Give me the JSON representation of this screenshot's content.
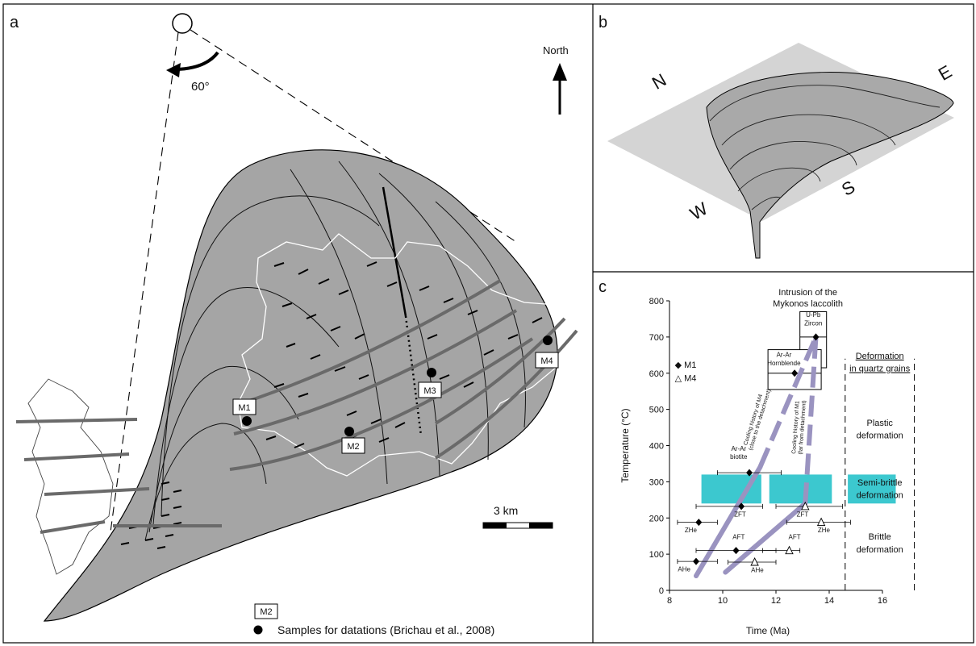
{
  "panel_a": {
    "label": "a",
    "north_label": "North",
    "rotation_label": "60°",
    "scale_label": "3 km",
    "samples": [
      {
        "name": "M1"
      },
      {
        "name": "M2"
      },
      {
        "name": "M3"
      },
      {
        "name": "M4"
      }
    ],
    "legend": {
      "box_label": "M2",
      "samples_label": "Samples for datations (Brichau et al., 2008)"
    }
  },
  "panel_b": {
    "label": "b",
    "compass": {
      "n": "N",
      "e": "E",
      "s": "S",
      "w": "W"
    }
  },
  "chart_data": {
    "type": "scatter",
    "panel_label": "c",
    "xlabel": "Time (Ma)",
    "ylabel": "Temperature (°C)",
    "xlim": [
      8,
      16
    ],
    "ylim": [
      0,
      800
    ],
    "xticks": [
      8,
      10,
      12,
      14,
      16
    ],
    "yticks": [
      0,
      100,
      200,
      300,
      400,
      500,
      600,
      700,
      800
    ],
    "legend": [
      {
        "symbol": "◆",
        "name": "M1"
      },
      {
        "symbol": "△",
        "name": "M4"
      }
    ],
    "series": [
      {
        "name": "M1",
        "marker": "diamond",
        "points": [
          {
            "label": "AHe",
            "x": 9.0,
            "y": 80,
            "xerr": [
              8.3,
              9.8
            ]
          },
          {
            "label": "AFT",
            "x": 10.5,
            "y": 110,
            "xerr": [
              9.0,
              12.0
            ]
          },
          {
            "label": "ZHe",
            "x": 9.1,
            "y": 188,
            "xerr": [
              8.3,
              9.8
            ]
          },
          {
            "label": "ZFT",
            "x": 10.7,
            "y": 232,
            "xerr": [
              9.0,
              11.5
            ]
          },
          {
            "label": "Ar-Ar biotite",
            "x": 11.0,
            "y": 325,
            "xerr": [
              9.8,
              12.2
            ]
          },
          {
            "label": "Ar-Ar Hornblende",
            "x": 12.7,
            "y": 600,
            "xerr": []
          },
          {
            "label": "U-Pb Zircon",
            "x": 13.5,
            "y": 700,
            "xerr": []
          }
        ]
      },
      {
        "name": "M4",
        "marker": "triangle",
        "points": [
          {
            "label": "AHe",
            "x": 11.2,
            "y": 78,
            "xerr": [
              10.2,
              12.0
            ]
          },
          {
            "label": "AFT",
            "x": 12.5,
            "y": 110,
            "xerr": [
              11.5,
              12.9
            ]
          },
          {
            "label": "ZFT",
            "x": 13.1,
            "y": 232,
            "xerr": [
              12.0,
              14.5
            ]
          },
          {
            "label": "ZHe",
            "x": 13.7,
            "y": 188,
            "xerr": [
              12.4,
              14.8
            ]
          }
        ]
      }
    ],
    "cooling_paths": [
      {
        "label": "Cooling history of M4 (close to the detachment)",
        "style": "solid-then-dashed"
      },
      {
        "label": "Cooling history of M1 (far from detachment)",
        "style": "solid-then-dashed"
      }
    ],
    "boxes": [
      {
        "label": "U-Pb Zircon"
      },
      {
        "label": "Ar-Ar Hornblende"
      }
    ],
    "annotations": {
      "intrusion": "Intrusion of the Mykonos laccolith",
      "deformation_header": "Deformation in quartz grains",
      "plastic": "Plastic deformation",
      "semi_brittle": "Semi-brittle deformation",
      "brittle": "Brittle deformation"
    },
    "semi_brittle_band": {
      "y": [
        240,
        320
      ],
      "color": "#3cc8cf"
    },
    "path_color": "#9a93c0",
    "grid": false
  }
}
